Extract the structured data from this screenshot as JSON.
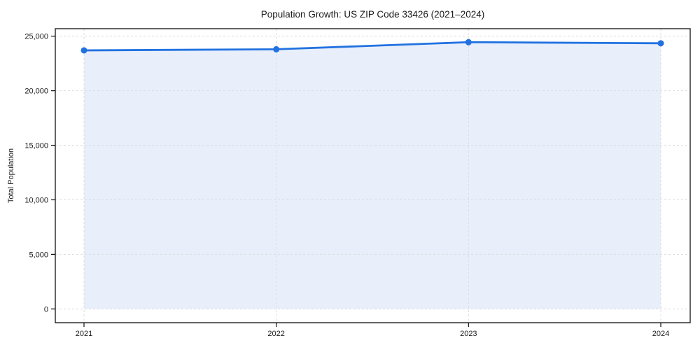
{
  "figure": {
    "title": "Population Growth: US ZIP Code 33426 (2021–2024)"
  },
  "chart_data": {
    "type": "line",
    "title": "Population Growth: US ZIP Code 33426 (2021–2024)",
    "xlabel": "",
    "ylabel": "Total Population",
    "categories": [
      "2021",
      "2022",
      "2023",
      "2024"
    ],
    "series": [
      {
        "name": "Total Population",
        "values": [
          23700,
          23800,
          24450,
          24350
        ]
      }
    ],
    "ylim": [
      0,
      25000
    ],
    "yticks": [
      0,
      5000,
      10000,
      15000,
      20000,
      25000
    ],
    "ytick_labels": [
      "0",
      "5,000",
      "10,000",
      "15,000",
      "20,000",
      "25,000"
    ],
    "xtick_labels": [
      "2021",
      "2022",
      "2023",
      "2024"
    ],
    "grid": true,
    "grid_style": "dashed",
    "legend_position": "none",
    "marker": "circle",
    "area_fill_to_zero": true,
    "colors": {
      "line": "#2172e0",
      "marker": "#2172e0",
      "fill": "#e8effb",
      "grid": "#dcdcdc",
      "spine": "#111111",
      "text": "#1a1a1a"
    }
  }
}
